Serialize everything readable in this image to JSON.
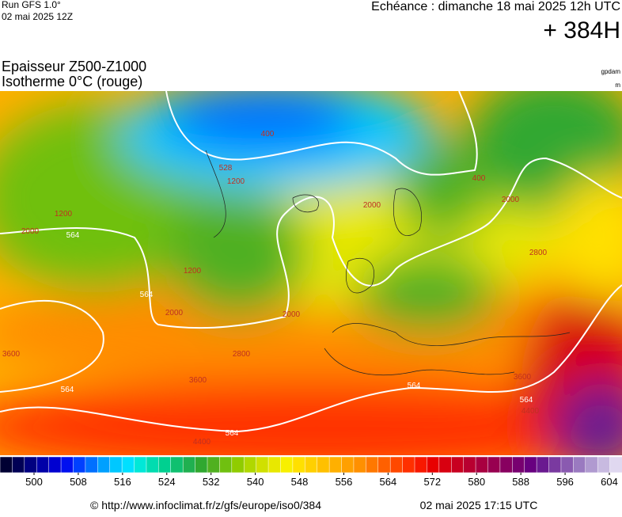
{
  "header": {
    "model": "Run GFS 1.0°",
    "run": "02 mai 2025 12Z",
    "valid": "Echéance : dimanche 18 mai 2025 12h UTC",
    "lead": "+ 384H"
  },
  "title": {
    "line1": "Epaisseur Z500-Z1000",
    "line2": "Isotherme 0°C (rouge)"
  },
  "units": [
    "gpdam",
    "m"
  ],
  "contour_labels": [
    "400",
    "528",
    "1200",
    "2000",
    "400",
    "2000",
    "564",
    "2000",
    "1200",
    "2800",
    "564",
    "2000",
    "2800",
    "3600",
    "564",
    "564",
    "4400",
    "564",
    "564",
    "3600",
    "4400",
    "2000",
    "1200",
    "3600"
  ],
  "colorbar": {
    "ticks": [
      500,
      508,
      516,
      524,
      532,
      540,
      548,
      556,
      564,
      572,
      580,
      588,
      596,
      604
    ],
    "colors": [
      "#000033",
      "#000055",
      "#000080",
      "#0000a8",
      "#0000d0",
      "#0010f0",
      "#0040ff",
      "#0070ff",
      "#00a0ff",
      "#00c8ff",
      "#00e0ff",
      "#00e8d8",
      "#00dcb0",
      "#00d090",
      "#10c070",
      "#20b050",
      "#30a830",
      "#50b020",
      "#70c010",
      "#90cc00",
      "#b0d800",
      "#d0e000",
      "#e8e800",
      "#f8f000",
      "#ffe000",
      "#ffd000",
      "#ffc000",
      "#ffb000",
      "#ffa000",
      "#ff9000",
      "#ff7800",
      "#ff6000",
      "#ff4800",
      "#ff3000",
      "#f81800",
      "#e80000",
      "#d80010",
      "#c80020",
      "#b80030",
      "#a80040",
      "#980050",
      "#880060",
      "#780070",
      "#680080",
      "#6a1a90",
      "#7a3aa0",
      "#8a5ab0",
      "#9a7ac0",
      "#b09ad0",
      "#c8bae0",
      "#e0d8f0"
    ]
  },
  "footer": {
    "url": "© http://www.infoclimat.fr/z/gfs/europe/iso0/384",
    "stamp": "02 mai 2025 17:15 UTC"
  }
}
